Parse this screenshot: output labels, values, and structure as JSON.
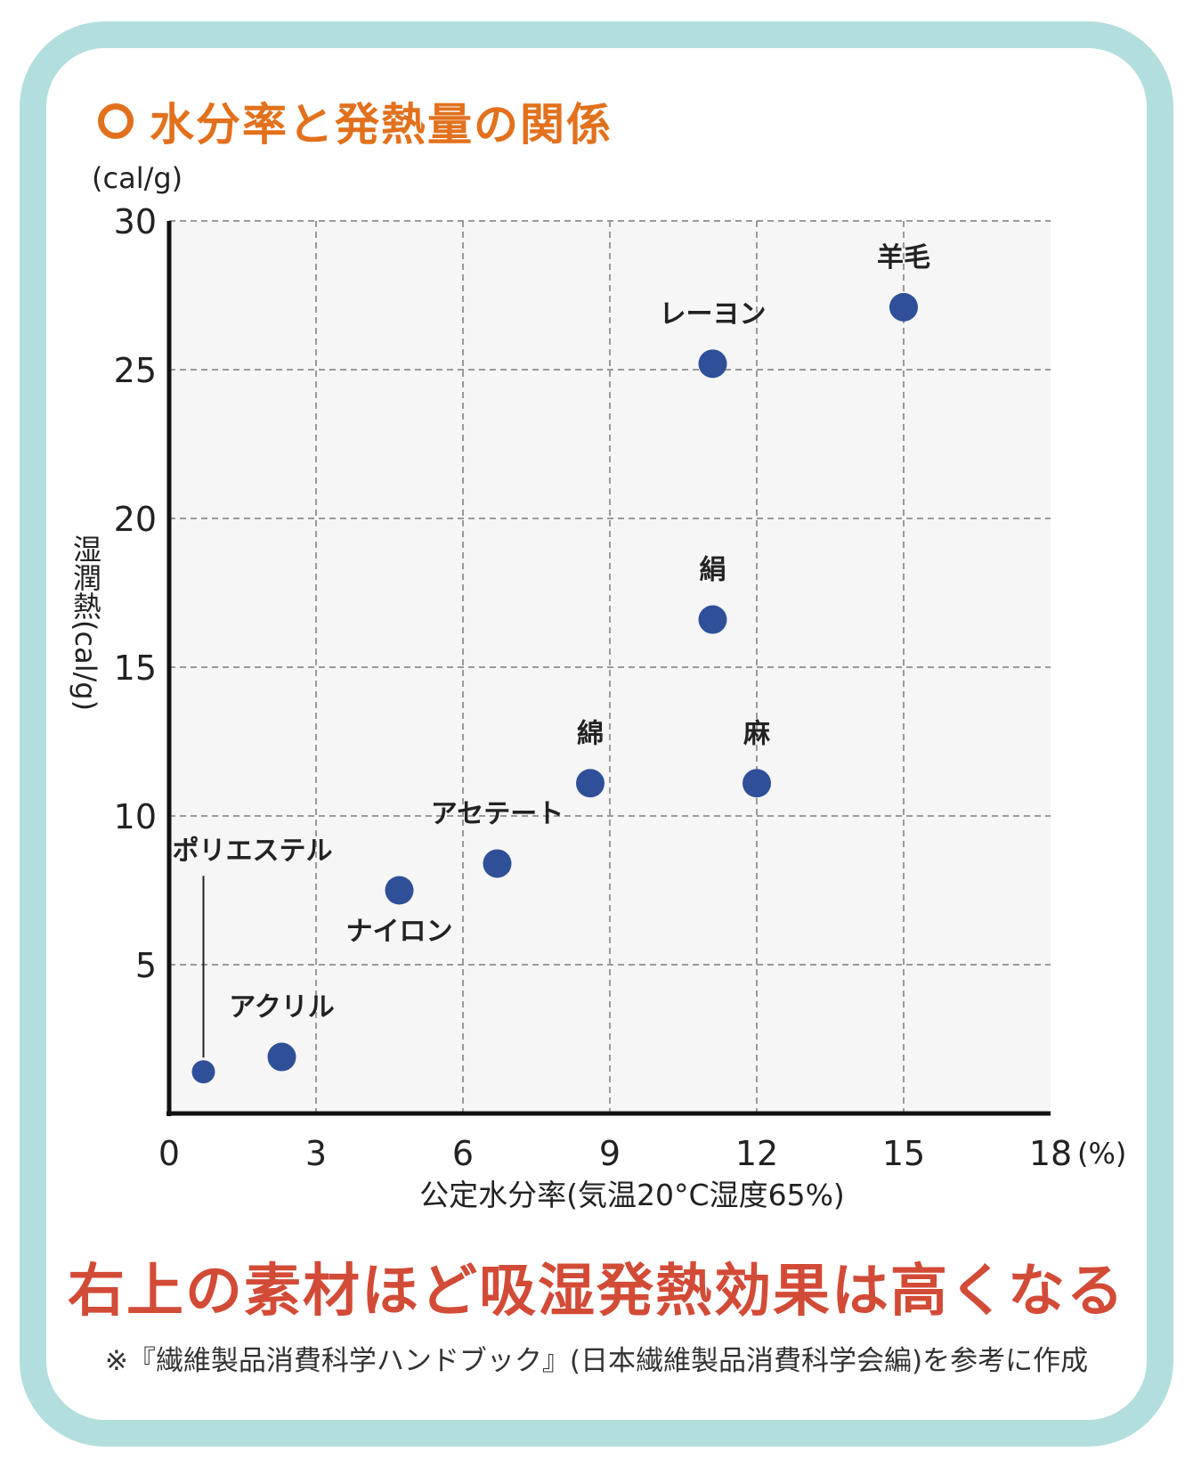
{
  "title": "水分率と発熱量の関係",
  "headline": "右上の素材ほど吸湿発熱効果は高くなる",
  "footnote": "※『繊維製品消費科学ハンドブック』(日本繊維製品消費科学会編)を参考に作成",
  "colors": {
    "frame": "#b3dede",
    "title": "#e2711d",
    "headline": "#d24b37",
    "point": "#2f4f98",
    "plot_bg": "#f6f6f6",
    "grid": "#9a9a9a"
  },
  "chart_data": {
    "type": "scatter",
    "xlabel": "公定水分率(気温20°C湿度65%)",
    "x_unit": "(%)",
    "ylabel": "湿潤熱(cal/g)",
    "y_unit": "(cal/g)",
    "xlim": [
      0,
      18
    ],
    "ylim": [
      0,
      30
    ],
    "xticks": [
      0,
      3,
      6,
      9,
      12,
      15,
      18
    ],
    "yticks": [
      5,
      10,
      15,
      20,
      25,
      30
    ],
    "grid": true,
    "points": [
      {
        "label": "ポリエステル",
        "x": 0.7,
        "y": 1.4
      },
      {
        "label": "アクリル",
        "x": 2.3,
        "y": 1.9
      },
      {
        "label": "ナイロン",
        "x": 4.7,
        "y": 7.5
      },
      {
        "label": "アセテート",
        "x": 6.7,
        "y": 8.4
      },
      {
        "label": "綿",
        "x": 8.6,
        "y": 11.1
      },
      {
        "label": "麻",
        "x": 12.0,
        "y": 11.1
      },
      {
        "label": "絹",
        "x": 11.1,
        "y": 16.6
      },
      {
        "label": "レーヨン",
        "x": 11.1,
        "y": 25.2
      },
      {
        "label": "羊毛",
        "x": 15.0,
        "y": 27.1
      }
    ]
  }
}
